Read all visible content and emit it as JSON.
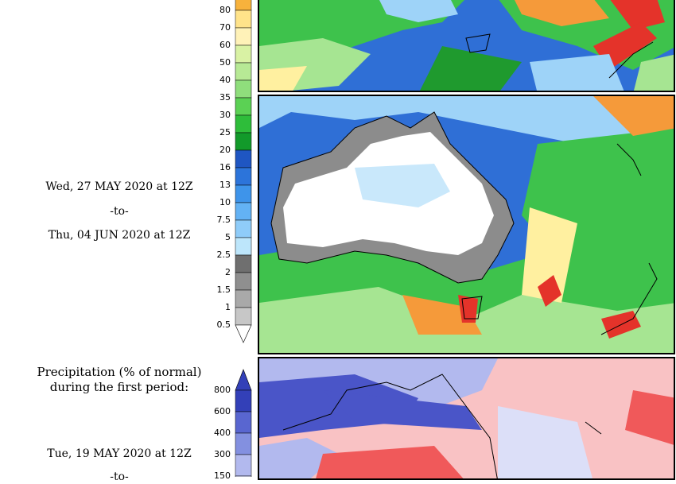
{
  "precip_scale": {
    "labels": [
      "80",
      "70",
      "60",
      "50",
      "40",
      "35",
      "30",
      "25",
      "20",
      "16",
      "13",
      "10",
      "7.5",
      "5",
      "2.5",
      "2",
      "1.5",
      "1",
      "0.5"
    ],
    "colors": [
      "#f7b23c",
      "#ffe38a",
      "#fff2b8",
      "#d9f2a4",
      "#b7e995",
      "#8fde7c",
      "#5bd154",
      "#2ebd3a",
      "#129a2a",
      "#1f56c2",
      "#2c74da",
      "#3e94ea",
      "#63b2f4",
      "#8fccf9",
      "#bde6fb",
      "#6f6f6f",
      "#8f8f8f",
      "#a9a9a9",
      "#c7c7c7"
    ]
  },
  "pct_scale": {
    "labels": [
      "800",
      "600",
      "400",
      "300",
      "150"
    ],
    "colors": [
      "#3340b8",
      "#5966d0",
      "#8390e0",
      "#b2b9ee",
      "#dcdff8"
    ]
  },
  "second_period": {
    "start": "Wed, 27 MAY 2020 at 12Z",
    "to": "-to-",
    "end": "Thu, 04 JUN 2020 at 12Z"
  },
  "pct_title": {
    "line1": "Precipitation (% of normal)",
    "line2": "during the first period:"
  },
  "first_period": {
    "start": "Tue, 19 MAY 2020 at 12Z",
    "to": "-to-"
  },
  "palette": {
    "ocean_blue": "#3f7fe0",
    "light_blue": "#9ed3f8",
    "green": "#3ec24c",
    "dark_green": "#1f9a2e",
    "light_green": "#a6e592",
    "yellow": "#fff0a0",
    "orange": "#f59a3a",
    "red": "#e4332a",
    "grey": "#8c8c8c",
    "pct_blue": "#4a55c8",
    "pct_red": "#f0595a",
    "pct_pink": "#f9c2c4"
  }
}
